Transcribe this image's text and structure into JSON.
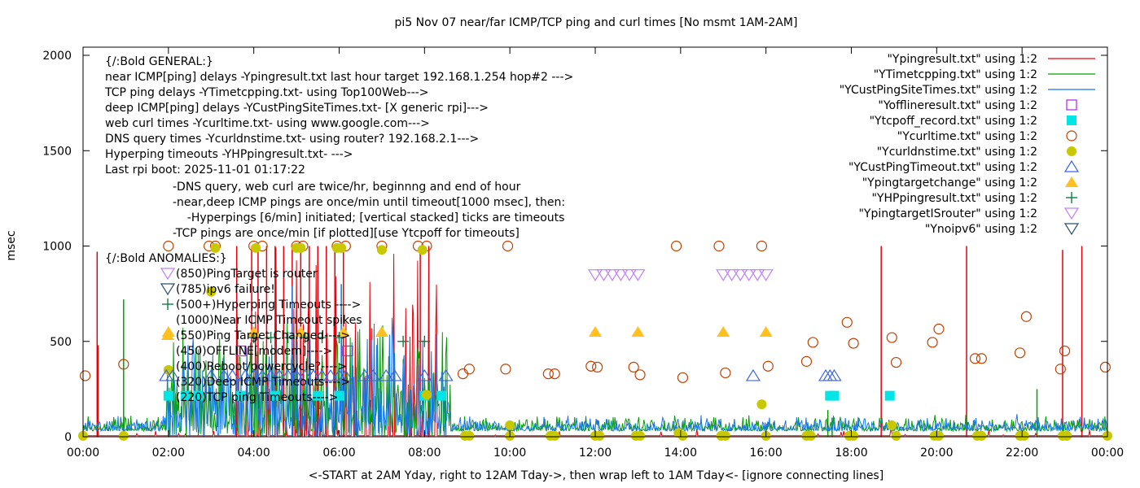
{
  "chart_data": {
    "type": "line",
    "title": "pi5 Nov 07  near/far ICMP/TCP ping and curl times [No msmt 1AM-2AM]",
    "xlabel": "<-START at 2AM Yday, right to 12AM Tday->, then wrap left to 1AM Tday<- [ignore connecting lines]",
    "ylabel": "msec",
    "xlim": [
      0,
      24
    ],
    "ylim": [
      0,
      2000
    ],
    "x_unit": "hours",
    "xticks": [
      {
        "v": 0,
        "label": "00:00"
      },
      {
        "v": 2,
        "label": "02:00"
      },
      {
        "v": 4,
        "label": "04:00"
      },
      {
        "v": 6,
        "label": "06:00"
      },
      {
        "v": 8,
        "label": "08:00"
      },
      {
        "v": 10,
        "label": "10:00"
      },
      {
        "v": 12,
        "label": "12:00"
      },
      {
        "v": 14,
        "label": "14:00"
      },
      {
        "v": 16,
        "label": "16:00"
      },
      {
        "v": 18,
        "label": "18:00"
      },
      {
        "v": 20,
        "label": "20:00"
      },
      {
        "v": 22,
        "label": "22:00"
      },
      {
        "v": 24,
        "label": "00:00"
      }
    ],
    "yticks": [
      {
        "v": 0,
        "label": "0"
      },
      {
        "v": 500,
        "label": "500"
      },
      {
        "v": 1000,
        "label": "1000"
      },
      {
        "v": 1500,
        "label": "1500"
      },
      {
        "v": 2000,
        "label": "2000"
      }
    ],
    "grid": false,
    "legend_position": "top-right",
    "annotations": {
      "general": [
        "{/:Bold GENERAL:}",
        "near ICMP[ping] delays -Ypingresult.txt last hour target 192.168.1.254 hop#2 --->",
        "TCP ping delays -YTimetcpping.txt- using Top100Web--->",
        "deep ICMP[ping] delays -YCustPingSiteTimes.txt- [X generic rpi]--->",
        "web curl times -Ycurltime.txt- using www.google.com--->",
        "DNS query times -Ycurldnstime.txt- using router? 192.168.2.1--->",
        "Hyperping timeouts -YHPpingresult.txt- --->",
        "Last rpi boot: 2025-11-01 01:17:22"
      ],
      "notes": [
        "-DNS query, web curl are twice/hr, beginnng and end of hour",
        "-near,deep ICMP pings are once/min until timeout[1000 msec], then:",
        "  -Hyperpings [6/min] initiated; [vertical stacked] ticks are timeouts",
        "-TCP pings are once/min [if plotted][use Ytcpoff for timeouts]"
      ],
      "anomalies_title": "{/:Bold ANOMALIES:}",
      "anomalies": [
        {
          "label": "(850)PingTarget is router",
          "marker": "tri-down-open",
          "color": "#bf80ff"
        },
        {
          "label": "(785)ipv6 failure!",
          "marker": "tri-down-open",
          "color": "#2c5068"
        },
        {
          "label": "(500+)Hyperping Timeouts ---->",
          "marker": "plus",
          "color": "#107c40"
        },
        {
          "label": "(1000)Near ICMP Timeout spikes",
          "marker": "none",
          "color": ""
        },
        {
          "label": "(550)Ping Target Changed---->",
          "marker": "tri-up-filled",
          "color": "#ffc020"
        },
        {
          "label": "(450)OFFLINE[modem]---->",
          "marker": "none",
          "color": ""
        },
        {
          "label": "(400)Reboot/powercycle?---->",
          "marker": "none",
          "color": ""
        },
        {
          "label": "(320)Deep ICMP Timeouts---->",
          "marker": "none",
          "color": ""
        },
        {
          "label": "(220)TCP ping Timeouts---->",
          "marker": "none",
          "color": ""
        }
      ]
    },
    "series": [
      {
        "name": "\"Ypingresult.txt\" using 1:2",
        "style": "line",
        "color": "#e8000b",
        "baseline": 5,
        "spikes": [
          {
            "x": 0.33,
            "y": 970
          },
          {
            "x": 0.35,
            "y": 480
          },
          {
            "x": 3.6,
            "y": 1000
          },
          {
            "x": 3.95,
            "y": 1000
          },
          {
            "x": 4.1,
            "y": 1000
          },
          {
            "x": 4.3,
            "y": 1000
          },
          {
            "x": 4.5,
            "y": 1000
          },
          {
            "x": 4.7,
            "y": 1000
          },
          {
            "x": 4.9,
            "y": 1000
          },
          {
            "x": 5.1,
            "y": 1000
          },
          {
            "x": 5.3,
            "y": 1000
          },
          {
            "x": 5.5,
            "y": 1000
          },
          {
            "x": 5.7,
            "y": 1000
          },
          {
            "x": 5.9,
            "y": 1000
          },
          {
            "x": 6.1,
            "y": 1000
          },
          {
            "x": 7.9,
            "y": 1000
          },
          {
            "x": 8.1,
            "y": 1000
          },
          {
            "x": 18.7,
            "y": 1000
          },
          {
            "x": 20.7,
            "y": 1000
          },
          {
            "x": 22.95,
            "y": 980
          },
          {
            "x": 23.4,
            "y": 1000
          }
        ]
      },
      {
        "name": "\"YTimetcpping.txt\" using 1:2",
        "style": "line",
        "color": "#00a000",
        "baseline": 30,
        "spikes": [
          {
            "x": 0.95,
            "y": 720
          },
          {
            "x": 17.45,
            "y": 140
          },
          {
            "x": 17.55,
            "y": 100
          },
          {
            "x": 22.35,
            "y": 250
          }
        ]
      },
      {
        "name": "\"YCustPingSiteTimes.txt\" using 1:2",
        "style": "line",
        "color": "#1878e8",
        "baseline": 30,
        "spikes": [
          {
            "x": 4.9,
            "y": 790
          },
          {
            "x": 6.05,
            "y": 800
          },
          {
            "x": 8.5,
            "y": 300
          }
        ]
      },
      {
        "name": "\"Yofflineresult.txt\" using 1:2",
        "style": "square-open",
        "color": "#b020e8",
        "points": [
          {
            "x": 3.7,
            "y": 450
          },
          {
            "x": 6.2,
            "y": 450
          }
        ]
      },
      {
        "name": "\"Ytcpoff_record.txt\" using 1:2",
        "style": "square-filled",
        "color": "#00e5e5",
        "points": [
          {
            "x": 2.0,
            "y": 215
          },
          {
            "x": 2.4,
            "y": 215
          },
          {
            "x": 2.7,
            "y": 215
          },
          {
            "x": 3.7,
            "y": 215
          },
          {
            "x": 4.5,
            "y": 215
          },
          {
            "x": 5.5,
            "y": 215
          },
          {
            "x": 6.0,
            "y": 215
          },
          {
            "x": 8.0,
            "y": 215
          },
          {
            "x": 8.4,
            "y": 215
          },
          {
            "x": 17.5,
            "y": 215
          },
          {
            "x": 17.6,
            "y": 215
          },
          {
            "x": 18.9,
            "y": 215
          }
        ]
      },
      {
        "name": "\"Ycurltime.txt\" using 1:2",
        "style": "circle-open",
        "color": "#c04000",
        "points": [
          {
            "x": 0.05,
            "y": 320
          },
          {
            "x": 0.95,
            "y": 380
          },
          {
            "x": 2.0,
            "y": 1000
          },
          {
            "x": 2.95,
            "y": 1000
          },
          {
            "x": 3.1,
            "y": 1000
          },
          {
            "x": 4.0,
            "y": 1000
          },
          {
            "x": 4.2,
            "y": 1000
          },
          {
            "x": 5.0,
            "y": 1000
          },
          {
            "x": 5.15,
            "y": 1000
          },
          {
            "x": 5.95,
            "y": 1000
          },
          {
            "x": 6.15,
            "y": 1000
          },
          {
            "x": 7.0,
            "y": 1000
          },
          {
            "x": 7.85,
            "y": 1000
          },
          {
            "x": 8.05,
            "y": 1000
          },
          {
            "x": 8.9,
            "y": 330
          },
          {
            "x": 9.05,
            "y": 355
          },
          {
            "x": 9.95,
            "y": 1000
          },
          {
            "x": 9.9,
            "y": 355
          },
          {
            "x": 10.9,
            "y": 330
          },
          {
            "x": 11.05,
            "y": 330
          },
          {
            "x": 11.9,
            "y": 370
          },
          {
            "x": 12.05,
            "y": 365
          },
          {
            "x": 12.9,
            "y": 365
          },
          {
            "x": 13.05,
            "y": 325
          },
          {
            "x": 13.9,
            "y": 1000
          },
          {
            "x": 14.05,
            "y": 310
          },
          {
            "x": 14.9,
            "y": 1000
          },
          {
            "x": 15.05,
            "y": 335
          },
          {
            "x": 15.9,
            "y": 1000
          },
          {
            "x": 16.05,
            "y": 370
          },
          {
            "x": 16.95,
            "y": 395
          },
          {
            "x": 17.1,
            "y": 495
          },
          {
            "x": 17.9,
            "y": 600
          },
          {
            "x": 18.05,
            "y": 490
          },
          {
            "x": 18.95,
            "y": 520
          },
          {
            "x": 19.05,
            "y": 390
          },
          {
            "x": 19.9,
            "y": 495
          },
          {
            "x": 20.05,
            "y": 565
          },
          {
            "x": 20.9,
            "y": 410
          },
          {
            "x": 21.05,
            "y": 410
          },
          {
            "x": 21.95,
            "y": 440
          },
          {
            "x": 22.1,
            "y": 630
          },
          {
            "x": 22.9,
            "y": 355
          },
          {
            "x": 23.0,
            "y": 450
          },
          {
            "x": 23.95,
            "y": 365
          }
        ]
      },
      {
        "name": "\"Ycurldnstime.txt\" using 1:2",
        "style": "circle-filled",
        "color": "#c8c800",
        "points": [
          {
            "x": 0.0,
            "y": 5
          },
          {
            "x": 0.95,
            "y": 5
          },
          {
            "x": 2.0,
            "y": 350
          },
          {
            "x": 3.0,
            "y": 760
          },
          {
            "x": 3.1,
            "y": 990
          },
          {
            "x": 4.05,
            "y": 990
          },
          {
            "x": 5.0,
            "y": 990
          },
          {
            "x": 5.1,
            "y": 990
          },
          {
            "x": 5.95,
            "y": 990
          },
          {
            "x": 6.05,
            "y": 990
          },
          {
            "x": 7.0,
            "y": 980
          },
          {
            "x": 7.95,
            "y": 980
          },
          {
            "x": 8.05,
            "y": 220
          },
          {
            "x": 8.95,
            "y": 5
          },
          {
            "x": 9.05,
            "y": 5
          },
          {
            "x": 10.0,
            "y": 60
          },
          {
            "x": 10.0,
            "y": 5
          },
          {
            "x": 10.95,
            "y": 5
          },
          {
            "x": 11.05,
            "y": 5
          },
          {
            "x": 12.0,
            "y": 5
          },
          {
            "x": 12.1,
            "y": 5
          },
          {
            "x": 12.95,
            "y": 5
          },
          {
            "x": 13.05,
            "y": 5
          },
          {
            "x": 13.95,
            "y": 20
          },
          {
            "x": 14.05,
            "y": 5
          },
          {
            "x": 14.95,
            "y": 5
          },
          {
            "x": 15.05,
            "y": 5
          },
          {
            "x": 15.9,
            "y": 170
          },
          {
            "x": 16.0,
            "y": 5
          },
          {
            "x": 16.95,
            "y": 5
          },
          {
            "x": 17.05,
            "y": 5
          },
          {
            "x": 17.95,
            "y": 5
          },
          {
            "x": 18.05,
            "y": 5
          },
          {
            "x": 18.95,
            "y": 60
          },
          {
            "x": 19.05,
            "y": 5
          },
          {
            "x": 19.95,
            "y": 5
          },
          {
            "x": 20.05,
            "y": 5
          },
          {
            "x": 20.95,
            "y": 5
          },
          {
            "x": 21.05,
            "y": 5
          },
          {
            "x": 21.95,
            "y": 5
          },
          {
            "x": 22.05,
            "y": 5
          },
          {
            "x": 22.95,
            "y": 5
          },
          {
            "x": 23.05,
            "y": 5
          },
          {
            "x": 24.0,
            "y": 5
          }
        ]
      },
      {
        "name": "\"YCustPingTimeout.txt\" using 1:2",
        "style": "tri-up-open",
        "color": "#3c64e6",
        "points": [
          {
            "x": 1.95,
            "y": 320
          },
          {
            "x": 2.1,
            "y": 320
          },
          {
            "x": 3.0,
            "y": 320
          },
          {
            "x": 3.3,
            "y": 320
          },
          {
            "x": 3.5,
            "y": 320
          },
          {
            "x": 3.8,
            "y": 320
          },
          {
            "x": 4.0,
            "y": 320
          },
          {
            "x": 4.2,
            "y": 320
          },
          {
            "x": 4.4,
            "y": 320
          },
          {
            "x": 4.6,
            "y": 320
          },
          {
            "x": 4.8,
            "y": 320
          },
          {
            "x": 5.0,
            "y": 320
          },
          {
            "x": 5.2,
            "y": 320
          },
          {
            "x": 5.4,
            "y": 320
          },
          {
            "x": 5.6,
            "y": 320
          },
          {
            "x": 5.8,
            "y": 320
          },
          {
            "x": 6.0,
            "y": 320
          },
          {
            "x": 6.15,
            "y": 320
          },
          {
            "x": 6.6,
            "y": 320
          },
          {
            "x": 6.8,
            "y": 320
          },
          {
            "x": 7.1,
            "y": 320
          },
          {
            "x": 7.3,
            "y": 320
          },
          {
            "x": 8.0,
            "y": 320
          },
          {
            "x": 8.5,
            "y": 320
          },
          {
            "x": 15.7,
            "y": 320
          },
          {
            "x": 17.4,
            "y": 320
          },
          {
            "x": 17.5,
            "y": 320
          },
          {
            "x": 17.6,
            "y": 320
          }
        ]
      },
      {
        "name": "\"Ypingtargetchange\" using 1:2",
        "style": "tri-up-filled",
        "color": "#ffc020",
        "points": [
          {
            "x": 2.0,
            "y": 550
          },
          {
            "x": 4.0,
            "y": 550
          },
          {
            "x": 5.1,
            "y": 550
          },
          {
            "x": 6.1,
            "y": 550
          },
          {
            "x": 7.0,
            "y": 550
          },
          {
            "x": 12.0,
            "y": 550
          },
          {
            "x": 13.0,
            "y": 550
          },
          {
            "x": 15.0,
            "y": 550
          },
          {
            "x": 16.0,
            "y": 550
          }
        ]
      },
      {
        "name": "\"YHPpingresult.txt\" using 1:2",
        "style": "plus",
        "color": "#107c40",
        "points": [
          {
            "x": 4.0,
            "y": 520
          },
          {
            "x": 4.4,
            "y": 520
          },
          {
            "x": 4.8,
            "y": 520
          },
          {
            "x": 5.2,
            "y": 520
          },
          {
            "x": 5.6,
            "y": 520
          },
          {
            "x": 6.0,
            "y": 520
          },
          {
            "x": 7.5,
            "y": 500
          },
          {
            "x": 8.0,
            "y": 500
          }
        ]
      },
      {
        "name": "\"YpingtargetISrouter\" using 1:2",
        "style": "tri-down-open",
        "color": "#bf80ff",
        "points": [
          {
            "x": 12.0,
            "y": 850
          },
          {
            "x": 12.2,
            "y": 850
          },
          {
            "x": 12.4,
            "y": 850
          },
          {
            "x": 12.6,
            "y": 850
          },
          {
            "x": 12.8,
            "y": 850
          },
          {
            "x": 13.0,
            "y": 850
          },
          {
            "x": 15.0,
            "y": 850
          },
          {
            "x": 15.2,
            "y": 850
          },
          {
            "x": 15.4,
            "y": 850
          },
          {
            "x": 15.6,
            "y": 850
          },
          {
            "x": 15.8,
            "y": 850
          },
          {
            "x": 16.0,
            "y": 850
          }
        ]
      },
      {
        "name": "\"Ynoipv6\" using 1:2",
        "style": "tri-down-open",
        "color": "#2c5068",
        "points": []
      }
    ]
  }
}
